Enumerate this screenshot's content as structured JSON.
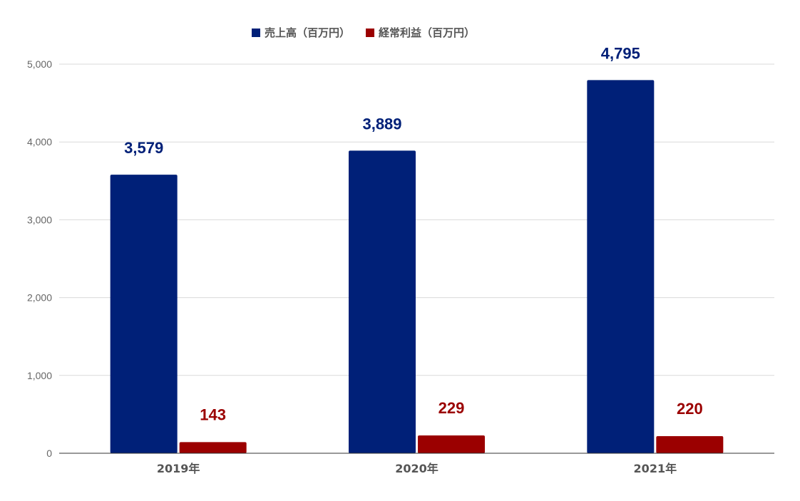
{
  "chart_data": {
    "type": "bar",
    "categories": [
      "2019年",
      "2020年",
      "2021年"
    ],
    "series": [
      {
        "name": "売上高（百万円）",
        "values": [
          3579,
          3889,
          4795
        ],
        "color": "#002078"
      },
      {
        "name": "経常利益（百万円）",
        "values": [
          143,
          229,
          220
        ],
        "color": "#9b0000"
      }
    ],
    "data_labels": [
      [
        "3,579",
        "3,889",
        "4,795"
      ],
      [
        "143",
        "229",
        "220"
      ]
    ],
    "yticks": [
      0,
      1000,
      2000,
      3000,
      4000,
      5000
    ],
    "ytick_labels": [
      "0",
      "1,000",
      "2,000",
      "3,000",
      "4,000",
      "5,000"
    ],
    "ylim": [
      0,
      5000
    ],
    "grid": true,
    "legend_position": "top-center",
    "title": "",
    "xlabel": "",
    "ylabel": ""
  }
}
